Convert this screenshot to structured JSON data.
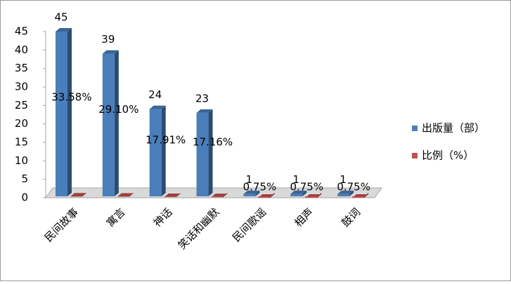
{
  "chart_data": {
    "type": "bar3d",
    "categories": [
      "民间故事",
      "寓言",
      "神话",
      "笑话和幽默",
      "民间歌谣",
      "相声",
      "鼓词"
    ],
    "series": [
      {
        "name": "出版量（部）",
        "color": "#4a7ebb",
        "values": [
          45,
          39,
          24,
          23,
          1,
          1,
          1
        ]
      },
      {
        "name": "比例（%）",
        "color": "#c0504d",
        "values": [
          0.3358,
          0.291,
          0.1791,
          0.1716,
          0.0075,
          0.0075,
          0.0075
        ],
        "value_labels": [
          "33.58%",
          "29.10%",
          "17.91%",
          "17.16%",
          "0.75%",
          "0.75%",
          "0.75%"
        ]
      }
    ],
    "ylim": [
      0,
      45
    ],
    "yticks": [
      0,
      5,
      10,
      15,
      20,
      25,
      30,
      35,
      40,
      45
    ],
    "legend": "right"
  }
}
